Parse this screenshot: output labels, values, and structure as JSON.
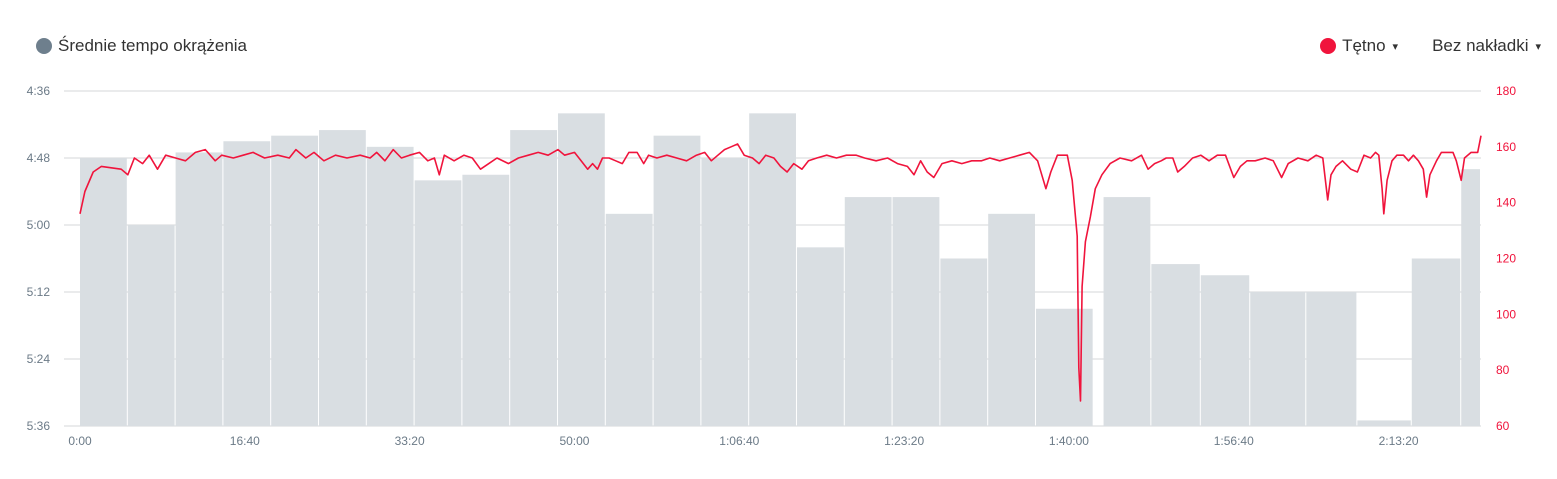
{
  "legend": {
    "left_series": "Średnie tempo okrążenia",
    "left_color": "#6e7f8d",
    "right_series": "Tętno",
    "right_color": "#f0143c",
    "overlay_label": "Bez nakładki"
  },
  "icons": {
    "caret": "▾"
  },
  "chart_data": {
    "type": "bar+line",
    "x_axis": {
      "label": "",
      "ticks": [
        "0:00",
        "16:40",
        "33:20",
        "50:00",
        "1:06:40",
        "1:23:20",
        "1:40:00",
        "1:56:40",
        "2:13:20"
      ],
      "tick_seconds": [
        0,
        1000,
        2000,
        3000,
        4000,
        5000,
        6000,
        7000,
        8000
      ],
      "range_seconds": [
        0,
        8500
      ]
    },
    "y_left": {
      "label": "",
      "ticks": [
        "4:36",
        "4:48",
        "5:00",
        "5:12",
        "5:24",
        "5:36"
      ],
      "range_seconds_per_km": [
        276,
        336
      ],
      "inverted": true
    },
    "y_right": {
      "label": "",
      "ticks": [
        "180",
        "160",
        "140",
        "120",
        "100",
        "80",
        "60"
      ],
      "range": [
        60,
        180
      ]
    },
    "grid": true,
    "pace_laps": [
      {
        "start": 0,
        "end": 290,
        "pace": 288
      },
      {
        "start": 290,
        "end": 580,
        "pace": 300
      },
      {
        "start": 580,
        "end": 870,
        "pace": 287
      },
      {
        "start": 870,
        "end": 1160,
        "pace": 285
      },
      {
        "start": 1160,
        "end": 1450,
        "pace": 284
      },
      {
        "start": 1450,
        "end": 1740,
        "pace": 283
      },
      {
        "start": 1740,
        "end": 2030,
        "pace": 286
      },
      {
        "start": 2030,
        "end": 2320,
        "pace": 292
      },
      {
        "start": 2320,
        "end": 2610,
        "pace": 291
      },
      {
        "start": 2610,
        "end": 2900,
        "pace": 283
      },
      {
        "start": 2900,
        "end": 3190,
        "pace": 280
      },
      {
        "start": 3190,
        "end": 3480,
        "pace": 298
      },
      {
        "start": 3480,
        "end": 3770,
        "pace": 284
      },
      {
        "start": 3770,
        "end": 4060,
        "pace": 288
      },
      {
        "start": 4060,
        "end": 4350,
        "pace": 280
      },
      {
        "start": 4350,
        "end": 4640,
        "pace": 304
      },
      {
        "start": 4640,
        "end": 4930,
        "pace": 295
      },
      {
        "start": 4930,
        "end": 5220,
        "pace": 295
      },
      {
        "start": 5220,
        "end": 5510,
        "pace": 306
      },
      {
        "start": 5510,
        "end": 5800,
        "pace": 298
      },
      {
        "start": 5800,
        "end": 6150,
        "pace": 315
      },
      {
        "start": 6150,
        "end": 6210,
        "pace": 336
      },
      {
        "start": 6210,
        "end": 6500,
        "pace": 295
      },
      {
        "start": 6500,
        "end": 6800,
        "pace": 307
      },
      {
        "start": 6800,
        "end": 7100,
        "pace": 309
      },
      {
        "start": 7100,
        "end": 7440,
        "pace": 312
      },
      {
        "start": 7440,
        "end": 7750,
        "pace": 312
      },
      {
        "start": 7750,
        "end": 8080,
        "pace": 335
      },
      {
        "start": 8080,
        "end": 8380,
        "pace": 306
      },
      {
        "start": 8380,
        "end": 8500,
        "pace": 290
      }
    ],
    "heart_rate": {
      "name": "Tętno",
      "points": [
        [
          0,
          136
        ],
        [
          30,
          144
        ],
        [
          80,
          151
        ],
        [
          130,
          153
        ],
        [
          250,
          152
        ],
        [
          290,
          150
        ],
        [
          330,
          156
        ],
        [
          380,
          154
        ],
        [
          420,
          157
        ],
        [
          470,
          152
        ],
        [
          520,
          157
        ],
        [
          580,
          156
        ],
        [
          640,
          155
        ],
        [
          700,
          158
        ],
        [
          760,
          159
        ],
        [
          820,
          155
        ],
        [
          860,
          157
        ],
        [
          930,
          156
        ],
        [
          990,
          157
        ],
        [
          1050,
          158
        ],
        [
          1120,
          156
        ],
        [
          1200,
          157
        ],
        [
          1270,
          156
        ],
        [
          1310,
          159
        ],
        [
          1370,
          156
        ],
        [
          1420,
          158
        ],
        [
          1480,
          155
        ],
        [
          1550,
          157
        ],
        [
          1620,
          156
        ],
        [
          1700,
          157
        ],
        [
          1760,
          156
        ],
        [
          1800,
          158
        ],
        [
          1850,
          155
        ],
        [
          1900,
          159
        ],
        [
          1950,
          156
        ],
        [
          2000,
          157
        ],
        [
          2060,
          158
        ],
        [
          2110,
          155
        ],
        [
          2150,
          156
        ],
        [
          2180,
          150
        ],
        [
          2210,
          157
        ],
        [
          2270,
          155
        ],
        [
          2330,
          157
        ],
        [
          2380,
          156
        ],
        [
          2430,
          152
        ],
        [
          2480,
          154
        ],
        [
          2530,
          156
        ],
        [
          2600,
          154
        ],
        [
          2660,
          156
        ],
        [
          2720,
          157
        ],
        [
          2780,
          158
        ],
        [
          2840,
          157
        ],
        [
          2900,
          159
        ],
        [
          2940,
          157
        ],
        [
          3000,
          158
        ],
        [
          3040,
          155
        ],
        [
          3080,
          152
        ],
        [
          3110,
          154
        ],
        [
          3140,
          152
        ],
        [
          3170,
          156
        ],
        [
          3210,
          156
        ],
        [
          3250,
          155
        ],
        [
          3290,
          154
        ],
        [
          3330,
          158
        ],
        [
          3380,
          158
        ],
        [
          3420,
          154
        ],
        [
          3450,
          157
        ],
        [
          3500,
          156
        ],
        [
          3560,
          157
        ],
        [
          3620,
          156
        ],
        [
          3680,
          155
        ],
        [
          3740,
          157
        ],
        [
          3790,
          158
        ],
        [
          3830,
          155
        ],
        [
          3870,
          157
        ],
        [
          3910,
          159
        ],
        [
          3950,
          160
        ],
        [
          3990,
          161
        ],
        [
          4030,
          157
        ],
        [
          4080,
          156
        ],
        [
          4120,
          154
        ],
        [
          4160,
          157
        ],
        [
          4210,
          156
        ],
        [
          4250,
          153
        ],
        [
          4290,
          151
        ],
        [
          4330,
          154
        ],
        [
          4380,
          152
        ],
        [
          4420,
          155
        ],
        [
          4470,
          156
        ],
        [
          4530,
          157
        ],
        [
          4590,
          156
        ],
        [
          4650,
          157
        ],
        [
          4710,
          157
        ],
        [
          4760,
          156
        ],
        [
          4830,
          155
        ],
        [
          4900,
          156
        ],
        [
          4960,
          154
        ],
        [
          5020,
          153
        ],
        [
          5060,
          150
        ],
        [
          5100,
          155
        ],
        [
          5140,
          151
        ],
        [
          5180,
          149
        ],
        [
          5230,
          154
        ],
        [
          5290,
          155
        ],
        [
          5350,
          154
        ],
        [
          5410,
          155
        ],
        [
          5470,
          155
        ],
        [
          5520,
          156
        ],
        [
          5580,
          155
        ],
        [
          5640,
          156
        ],
        [
          5700,
          157
        ],
        [
          5760,
          158
        ],
        [
          5810,
          155
        ],
        [
          5860,
          145
        ],
        [
          5890,
          151
        ],
        [
          5930,
          157
        ],
        [
          5960,
          157
        ],
        [
          5990,
          157
        ],
        [
          6020,
          148
        ],
        [
          6050,
          128
        ],
        [
          6060,
          81
        ],
        [
          6070,
          69
        ],
        [
          6080,
          110
        ],
        [
          6100,
          126
        ],
        [
          6130,
          135
        ],
        [
          6160,
          145
        ],
        [
          6200,
          150
        ],
        [
          6250,
          154
        ],
        [
          6310,
          156
        ],
        [
          6380,
          155
        ],
        [
          6440,
          157
        ],
        [
          6480,
          152
        ],
        [
          6520,
          154
        ],
        [
          6560,
          155
        ],
        [
          6590,
          156
        ],
        [
          6630,
          156
        ],
        [
          6660,
          151
        ],
        [
          6700,
          153
        ],
        [
          6750,
          156
        ],
        [
          6800,
          157
        ],
        [
          6850,
          155
        ],
        [
          6900,
          157
        ],
        [
          6950,
          157
        ],
        [
          7000,
          149
        ],
        [
          7040,
          153
        ],
        [
          7080,
          155
        ],
        [
          7130,
          155
        ],
        [
          7190,
          156
        ],
        [
          7240,
          155
        ],
        [
          7290,
          149
        ],
        [
          7330,
          154
        ],
        [
          7390,
          156
        ],
        [
          7450,
          155
        ],
        [
          7500,
          157
        ],
        [
          7540,
          156
        ],
        [
          7570,
          141
        ],
        [
          7590,
          150
        ],
        [
          7620,
          153
        ],
        [
          7660,
          155
        ],
        [
          7710,
          152
        ],
        [
          7750,
          151
        ],
        [
          7790,
          157
        ],
        [
          7830,
          156
        ],
        [
          7860,
          158
        ],
        [
          7880,
          157
        ],
        [
          7900,
          145
        ],
        [
          7910,
          136
        ],
        [
          7930,
          148
        ],
        [
          7960,
          155
        ],
        [
          7990,
          157
        ],
        [
          8030,
          157
        ],
        [
          8060,
          155
        ],
        [
          8090,
          157
        ],
        [
          8120,
          155
        ],
        [
          8150,
          152
        ],
        [
          8170,
          142
        ],
        [
          8190,
          150
        ],
        [
          8230,
          155
        ],
        [
          8260,
          158
        ],
        [
          8300,
          158
        ],
        [
          8330,
          158
        ],
        [
          8350,
          155
        ],
        [
          8380,
          148
        ],
        [
          8400,
          156
        ],
        [
          8440,
          158
        ],
        [
          8480,
          158
        ],
        [
          8500,
          164
        ]
      ]
    }
  }
}
